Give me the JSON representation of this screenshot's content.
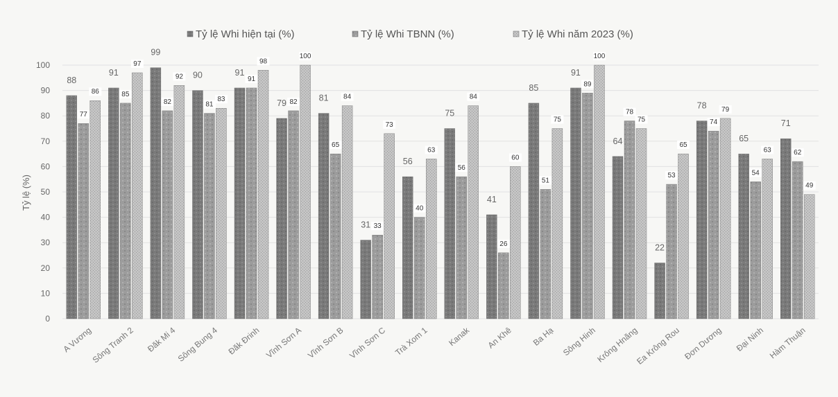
{
  "chart_data": {
    "type": "bar",
    "ylabel": "Tỷ lệ (%)",
    "ylim": [
      0,
      100
    ],
    "yticks": [
      0,
      10,
      20,
      30,
      40,
      50,
      60,
      70,
      80,
      90,
      100
    ],
    "grid": true,
    "legend_position": "top",
    "categories": [
      "A Vương",
      "Sông Tranh 2",
      "Đăk Mi 4",
      "Sông Bung 4",
      "Đăk Đrinh",
      "Vĩnh Sơn A",
      "Vĩnh Sơn B",
      "Vĩnh Sơn C",
      "Trà Xom 1",
      "Kanak",
      "An Khê",
      "Ba Hạ",
      "Sông Hinh",
      "Krông Hnăng",
      "Ea Krông Rou",
      "Đơn Dương",
      "Đại Ninh",
      "Hàm Thuận"
    ],
    "series": [
      {
        "name": "Tỷ lệ Whi hiện tại (%)",
        "color": "#7d7d7d",
        "values": [
          88,
          91,
          99,
          90,
          91,
          79,
          81,
          31,
          56,
          75,
          41,
          85,
          91,
          64,
          22,
          78,
          65,
          71
        ]
      },
      {
        "name": "Tỷ lệ Whi TBNN (%)",
        "color": "#999999",
        "values": [
          77,
          85,
          82,
          81,
          91,
          82,
          65,
          33,
          40,
          56,
          26,
          51,
          89,
          78,
          53,
          74,
          54,
          62
        ]
      },
      {
        "name": "Tỷ lệ Whi năm 2023 (%)",
        "color": "#b9b9b9",
        "values": [
          86,
          97,
          92,
          83,
          98,
          100,
          84,
          73,
          63,
          84,
          60,
          75,
          100,
          75,
          65,
          79,
          63,
          49
        ]
      }
    ]
  }
}
